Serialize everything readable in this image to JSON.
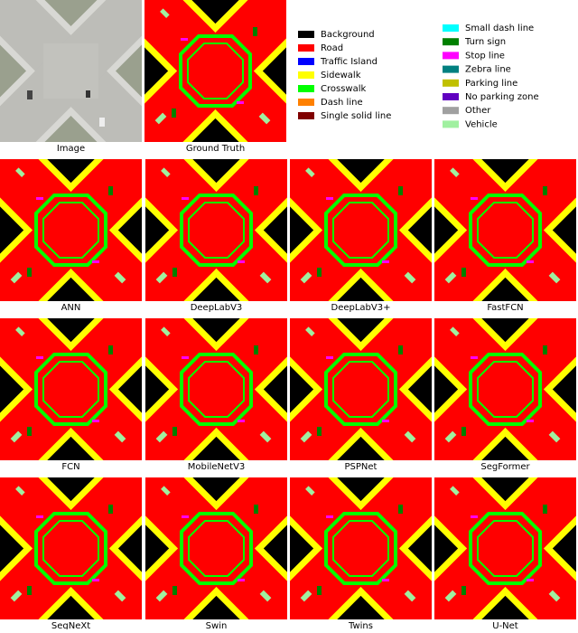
{
  "panels": [
    {
      "label": "Image"
    },
    {
      "label": "Ground Truth"
    },
    {
      "label": "ANN"
    },
    {
      "label": "DeepLabV3"
    },
    {
      "label": "DeepLabV3+"
    },
    {
      "label": "FastFCN"
    },
    {
      "label": "FCN"
    },
    {
      "label": "MobileNetV3"
    },
    {
      "label": "PSPNet"
    },
    {
      "label": "SegFormer"
    },
    {
      "label": "SegNeXt"
    },
    {
      "label": "Swin"
    },
    {
      "label": "Twins"
    },
    {
      "label": "U-Net"
    }
  ],
  "legend": [
    {
      "name": "Background",
      "color": "#000000"
    },
    {
      "name": "Road",
      "color": "#ff0000"
    },
    {
      "name": "Traffic Island",
      "color": "#0000ff"
    },
    {
      "name": "Sidewalk",
      "color": "#ffff00"
    },
    {
      "name": "Crosswalk",
      "color": "#00ff00"
    },
    {
      "name": "Dash line",
      "color": "#ff8000"
    },
    {
      "name": "Single solid line",
      "color": "#800000"
    },
    {
      "name": "Small dash line",
      "color": "#00ffff"
    },
    {
      "name": "Turn sign",
      "color": "#008000"
    },
    {
      "name": "Stop line",
      "color": "#ff00ff"
    },
    {
      "name": "Zebra line",
      "color": "#008080"
    },
    {
      "name": "Parking line",
      "color": "#c0c000"
    },
    {
      "name": "No parking zone",
      "color": "#6000c0"
    },
    {
      "name": "Other",
      "color": "#a0a0a0"
    },
    {
      "name": "Vehicle",
      "color": "#a0f0a0"
    }
  ]
}
